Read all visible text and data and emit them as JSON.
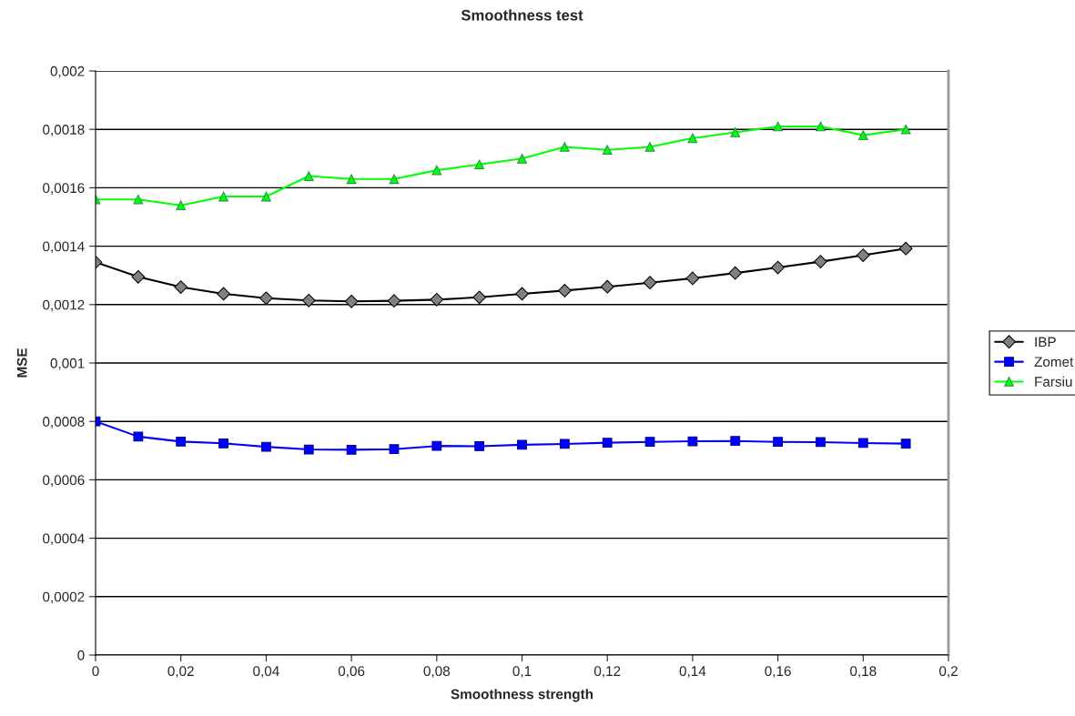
{
  "chart_data": {
    "type": "line",
    "title": "Smoothness test",
    "xlabel": "Smoothness strength",
    "ylabel": "MSE",
    "x": [
      0,
      0.01,
      0.02,
      0.03,
      0.04,
      0.05,
      0.06,
      0.07,
      0.08,
      0.09,
      0.1,
      0.11,
      0.12,
      0.13,
      0.14,
      0.15,
      0.16,
      0.17,
      0.18,
      0.19
    ],
    "series": [
      {
        "name": "IBP",
        "color": "#000000",
        "marker": "diamond",
        "values": [
          0.001345,
          0.001295,
          0.00126,
          0.001237,
          0.001222,
          0.001214,
          0.001211,
          0.001213,
          0.001217,
          0.001225,
          0.001237,
          0.001248,
          0.001261,
          0.001275,
          0.00129,
          0.001308,
          0.001327,
          0.001347,
          0.001369,
          0.001392
        ]
      },
      {
        "name": "Zomet",
        "color": "#0000ff",
        "marker": "square",
        "values": [
          0.0008,
          0.000748,
          0.000731,
          0.000725,
          0.000713,
          0.000704,
          0.000703,
          0.000705,
          0.000716,
          0.000715,
          0.00072,
          0.000723,
          0.000727,
          0.00073,
          0.000732,
          0.000733,
          0.00073,
          0.000729,
          0.000726,
          0.000724
        ]
      },
      {
        "name": "Farsiu",
        "color": "#00ff00",
        "marker": "triangle",
        "values": [
          0.00156,
          0.00156,
          0.00154,
          0.00157,
          0.00157,
          0.00164,
          0.00163,
          0.00163,
          0.00166,
          0.00168,
          0.0017,
          0.00174,
          0.00173,
          0.00174,
          0.00177,
          0.00179,
          0.00181,
          0.00181,
          0.00178,
          0.0018
        ]
      }
    ],
    "xlim": [
      0,
      0.2
    ],
    "ylim": [
      0,
      0.002
    ],
    "xticks": [
      0,
      {
        "value": 0.02,
        "label": "0,02"
      },
      {
        "value": 0.04,
        "label": "0,04"
      },
      {
        "value": 0.06,
        "label": "0,06"
      },
      {
        "value": 0.08,
        "label": "0,08"
      },
      {
        "value": 0.1,
        "label": "0,1"
      },
      {
        "value": 0.12,
        "label": "0,12"
      },
      {
        "value": 0.14,
        "label": "0,14"
      },
      {
        "value": 0.16,
        "label": "0,16"
      },
      {
        "value": 0.18,
        "label": "0,18"
      },
      {
        "value": 0.2,
        "label": "0,2"
      }
    ],
    "yticks": [
      0,
      {
        "value": 0.0002,
        "label": "0,0002"
      },
      {
        "value": 0.0004,
        "label": "0,0004"
      },
      {
        "value": 0.0006,
        "label": "0,0006"
      },
      {
        "value": 0.0008,
        "label": "0,0008"
      },
      {
        "value": 0.001,
        "label": "0,001"
      },
      {
        "value": 0.0012,
        "label": "0,0012"
      },
      {
        "value": 0.0014,
        "label": "0,0014"
      },
      {
        "value": 0.0016,
        "label": "0,0016"
      },
      {
        "value": 0.0018,
        "label": "0,0018"
      },
      {
        "value": 0.002,
        "label": "0,002"
      }
    ],
    "grid": "y",
    "legend": "right",
    "line_style": "solid"
  }
}
